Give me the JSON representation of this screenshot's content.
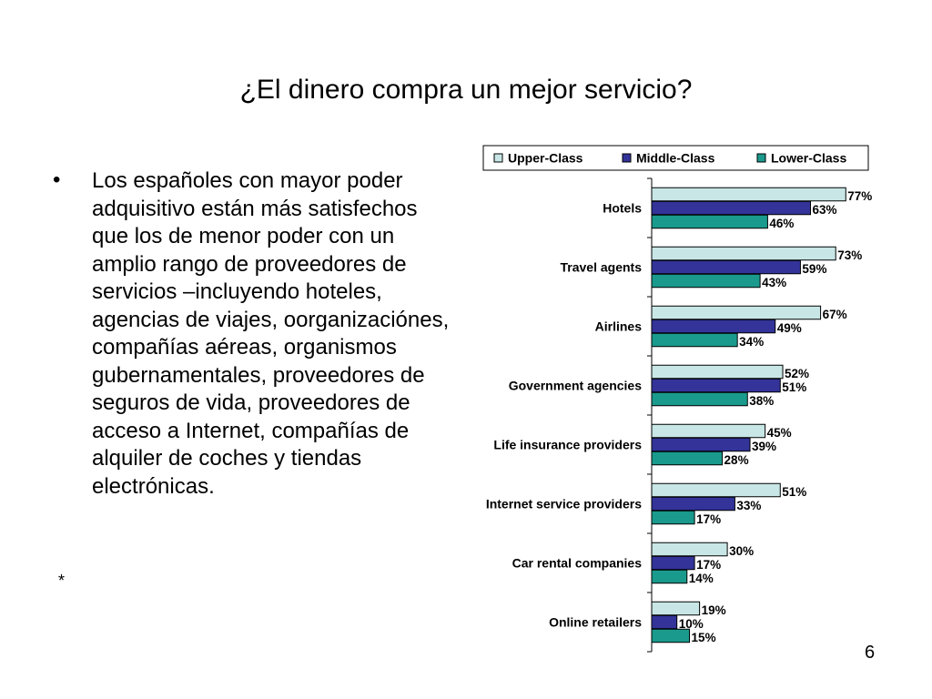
{
  "slide": {
    "title": "¿El dinero compra un mejor servicio?",
    "bullet": "Los españoles con mayor poder adquisitivo están más satisfechos que los de menor poder con un amplio rango de proveedores de servicios –incluyendo hoteles, agencias de viajes, oorganizaciónes, compañías aéreas, organismos gubernamentales, proveedores de seguros de vida, proveedores de acceso a Internet, compañías de alquiler de coches y tiendas electrónicas.",
    "footnote": "*",
    "page_number": "6"
  },
  "chart_data": {
    "type": "bar",
    "orientation": "horizontal",
    "categories": [
      "Hotels",
      "Travel agents",
      "Airlines",
      "Government agencies",
      "Life insurance providers",
      "Internet service providers",
      "Car rental companies",
      "Online retailers"
    ],
    "series": [
      {
        "name": "Upper-Class",
        "color": "#c8e6e6",
        "values": [
          77,
          73,
          67,
          52,
          45,
          51,
          30,
          19
        ]
      },
      {
        "name": "Middle-Class",
        "color": "#333399",
        "values": [
          63,
          59,
          49,
          51,
          39,
          33,
          17,
          10
        ]
      },
      {
        "name": "Lower-Class",
        "color": "#1a9a8c",
        "values": [
          46,
          43,
          34,
          38,
          28,
          17,
          14,
          15
        ]
      }
    ],
    "value_suffix": "%",
    "xlim": [
      0,
      100
    ],
    "legend_position": "top",
    "grid": false
  }
}
